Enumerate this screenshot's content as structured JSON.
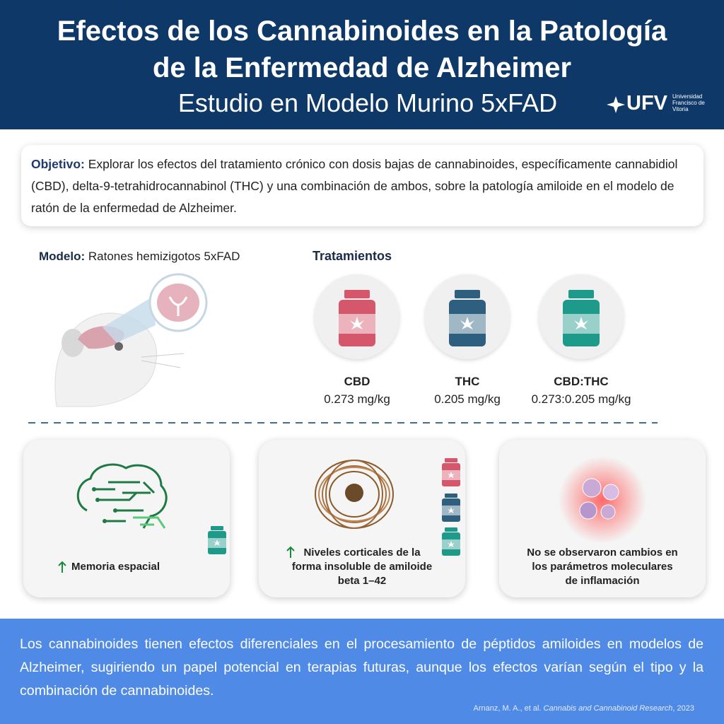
{
  "header": {
    "title_lines": [
      "Efectos de los Cannabinoides en la Patología",
      "de la Enfermedad de Alzheimer"
    ],
    "subtitle": "Estudio en Modelo Murino 5xFAD",
    "logo": {
      "name": "UFV",
      "institution_lines": [
        "Universidad",
        "Francisco de",
        "Vitoria"
      ]
    }
  },
  "objective": {
    "label": "Objetivo:",
    "text": "Explorar los efectos del tratamiento crónico con dosis bajas de cannabinoides, específicamente cannabidiol (CBD), delta-9-tetrahidrocannabinol (THC) y una combinación de ambos, sobre la patología amiloide en el modelo de ratón de la enfermedad de Alzheimer."
  },
  "model": {
    "label": "Modelo:",
    "text": "Ratones hemizigotos 5xFAD"
  },
  "treatments": {
    "heading": "Tratamientos",
    "items": [
      {
        "name": "CBD",
        "dose": "0.273 mg/kg"
      },
      {
        "name": "THC",
        "dose": "0.205 mg/kg"
      },
      {
        "name": "CBD:THC",
        "dose": "0.273:0.205 mg/kg"
      }
    ]
  },
  "results": [
    {
      "lines": [
        "Memoria espacial"
      ]
    },
    {
      "lines": [
        "Niveles corticales de la",
        "forma insoluble de amiloide",
        "beta 1–42"
      ]
    },
    {
      "lines": [
        "No se observaron cambios en",
        "los parámetros moleculares",
        "de inflamación"
      ]
    }
  ],
  "conclusion": "Los cannabinoides tienen efectos diferenciales en el procesamiento de péptidos amiloides en modelos de Alzheimer, sugiriendo un papel potencial en terapias futuras, aunque los efectos varían según el tipo y la combinación de cannabinoides.",
  "citation": {
    "authors": "Arnanz, M. A., et al.",
    "journal": "Cannabis and Cannabinoid Research",
    "tail": ", 2023"
  }
}
